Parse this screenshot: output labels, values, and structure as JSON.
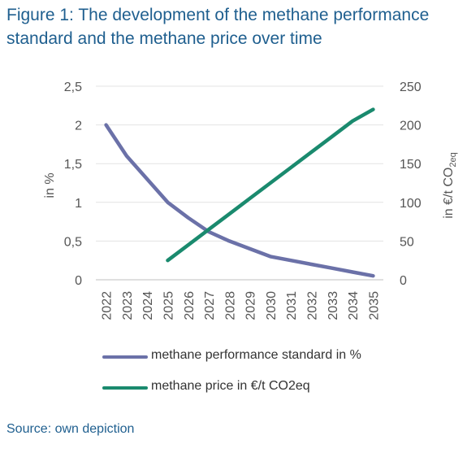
{
  "figure": {
    "title": "Figure 1: The development of the methane performance standard and the methane price over time",
    "source": "Source: own depiction"
  },
  "chart_data": {
    "type": "line",
    "categories": [
      "2022",
      "2023",
      "2024",
      "2025",
      "2026",
      "2027",
      "2028",
      "2029",
      "2030",
      "2031",
      "2032",
      "2033",
      "2034",
      "2035"
    ],
    "y_left": {
      "label": "in %",
      "min": 0,
      "max": 2.5,
      "ticks": [
        "0",
        "0,5",
        "1",
        "1,5",
        "2",
        "2,5"
      ]
    },
    "y_right": {
      "label": "in €/t CO2eq",
      "min": 0,
      "max": 250,
      "ticks": [
        "0",
        "50",
        "100",
        "150",
        "200",
        "250"
      ]
    },
    "grid": true,
    "legend_position": "bottom",
    "series": [
      {
        "name": "methane performance standard in %",
        "axis": "left",
        "color": "#6b71a8",
        "values": [
          2.0,
          1.6,
          1.3,
          1.0,
          0.8,
          0.62,
          0.5,
          0.4,
          0.3,
          0.25,
          0.2,
          0.15,
          0.1,
          0.05
        ]
      },
      {
        "name": "methane price in €/t CO2eq",
        "axis": "right",
        "color": "#1a8a6e",
        "values": [
          null,
          null,
          null,
          25,
          45,
          65,
          85,
          105,
          125,
          145,
          165,
          185,
          205,
          220
        ]
      }
    ]
  }
}
